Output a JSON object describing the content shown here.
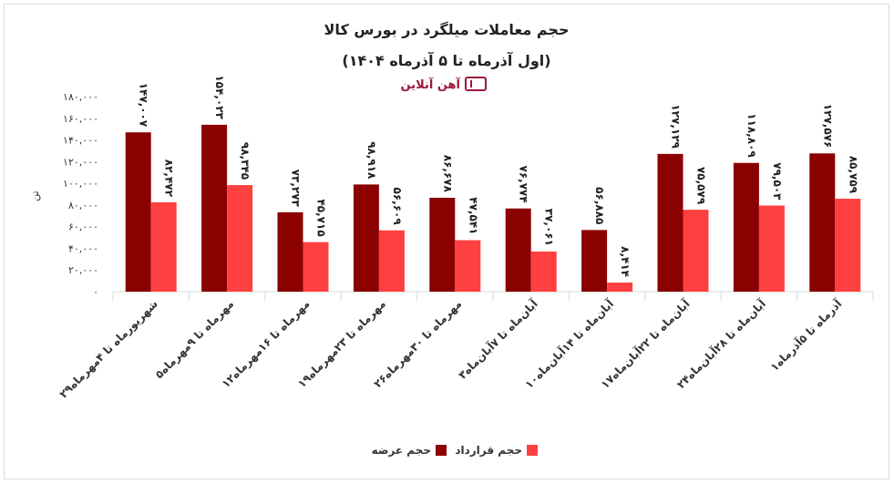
{
  "chart_data": {
    "type": "bar",
    "title": "حجم معاملات میلگرد در بورس کالا",
    "subtitle": "(اول آذرماه تا ۵ آذرماه ۱۴۰۴)",
    "watermark": "آهن آنلاین",
    "ylabel": "تن",
    "xlabel": "",
    "ylim": [
      0,
      180000
    ],
    "yticks": [
      "۰",
      "۲۰,۰۰۰",
      "۴۰,۰۰۰",
      "۶۰,۰۰۰",
      "۸۰,۰۰۰",
      "۱۰۰,۰۰۰",
      "۱۲۰,۰۰۰",
      "۱۴۰,۰۰۰",
      "۱۶۰,۰۰۰",
      "۱۸۰,۰۰۰"
    ],
    "ytick_values": [
      0,
      20000,
      40000,
      60000,
      80000,
      100000,
      120000,
      140000,
      160000,
      180000
    ],
    "grid": false,
    "legend_position": "bottom",
    "categories": [
      "۲۹شهریورماه تا ۴مهرماه",
      "۵مهرماه تا ۹مهرماه",
      "۱۲مهرماه تا ۱۶مهرماه",
      "۱۹مهرماه تا ۲۳مهرماه",
      "۲۶مهرماه تا ۳۰مهرماه",
      "۳آبان‌ماه تا ۷آبان‌ماه",
      "۱۰آبان‌ماه تا ۱۴آبان‌ماه",
      "۱۷آبان‌ماه تا ۲۲آبان‌ماه",
      "۲۴آبان‌ماه تا ۲۸آبان‌ماه",
      "۱آذرماه تا ۵آذرماه"
    ],
    "series": [
      {
        "name": "حجم عرضه",
        "color": "#8b0000",
        "values": [
          147007,
          154023,
          73273,
          98918,
          86678,
          76774,
          56885,
          127129,
          118809,
          127576
        ],
        "labels": [
          "۱۴۷,۰۰۷",
          "۱۵۴,۰۲۳",
          "۷۳,۲۷۳",
          "۹۸,۹۱۸",
          "۸۶,۶۷۸",
          "۷۶,۷۷۴",
          "۵۶,۸۸۵",
          "۱۲۷,۱۲۹",
          "۱۱۸,۸۰۹",
          "۱۲۷,۵۷۶"
        ]
      },
      {
        "name": "حجم قرارداد",
        "color": "#ff4040",
        "values": [
          82472,
          98345,
          45715,
          56609,
          47541,
          37061,
          8414,
          75579,
          79503,
          85759
        ],
        "labels": [
          "۸۲,۴۷۲",
          "۹۸,۳۴۵",
          "۴۵,۷۱۵",
          "۵۶,۶۰۹",
          "۴۷,۵۴۱",
          "۳۷,۰۶۱",
          "۸,۴۱۴",
          "۷۵,۵۷۹",
          "۷۹,۵۰۳",
          "۸۵,۷۵۹"
        ]
      }
    ]
  }
}
